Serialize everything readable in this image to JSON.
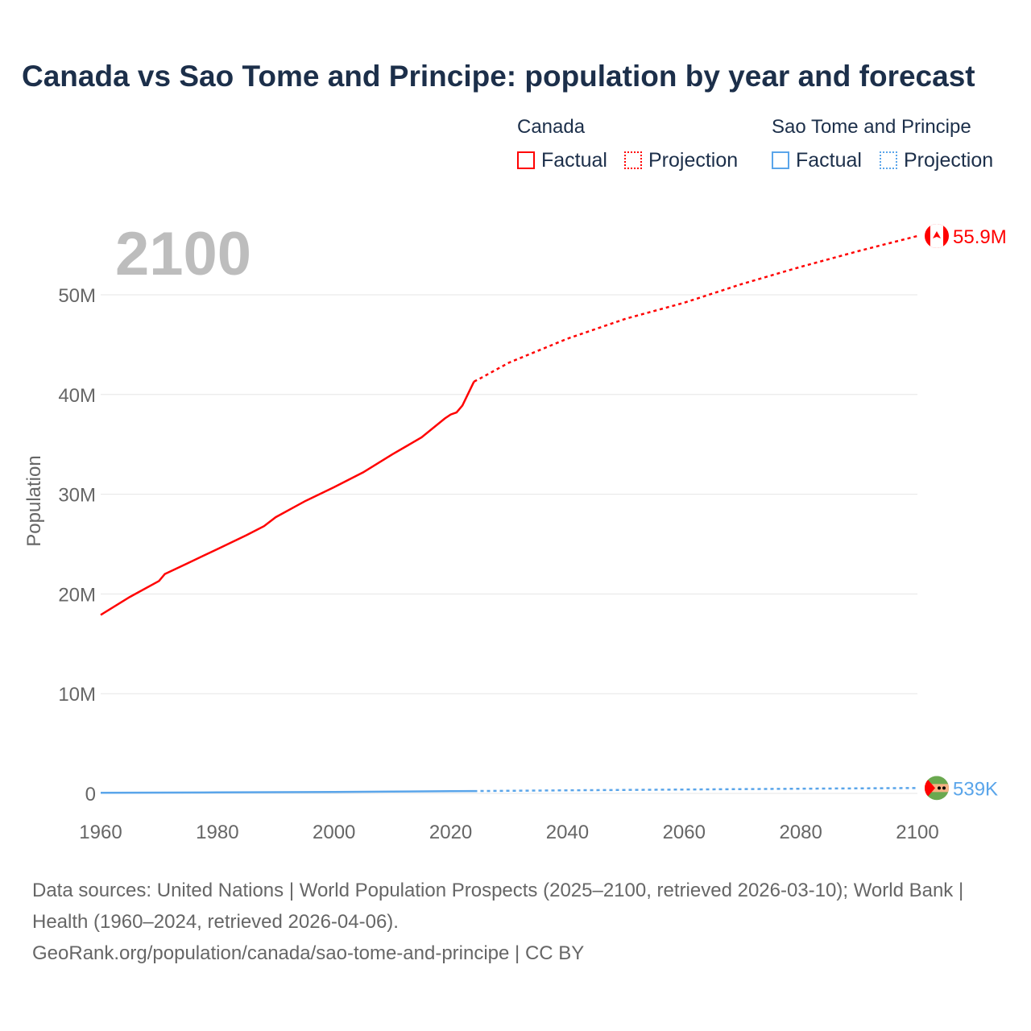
{
  "title": "Canada vs Sao Tome and Principe: population by year and forecast",
  "legend": {
    "groups": [
      {
        "name": "Canada",
        "factual": "Factual",
        "projection": "Projection",
        "color": "#ff0000"
      },
      {
        "name": "Sao Tome and Principe",
        "factual": "Factual",
        "projection": "Projection",
        "color": "#5aa5ea"
      }
    ]
  },
  "current_year": "2100",
  "sources": {
    "line1": "Data sources: United Nations | World Population Prospects (2025–2100, retrieved 2026-03-10); World Bank | Health (1960–2024, retrieved 2026-04-06).",
    "line2": "GeoRank.org/population/canada/sao-tome-and-principe | CC BY"
  },
  "chart_data": {
    "type": "line",
    "title": "Canada vs Sao Tome and Principe: population by year and forecast",
    "xlabel": "",
    "ylabel": "Population",
    "xlim": [
      1960,
      2100
    ],
    "ylim": [
      0,
      55000000
    ],
    "xticks": [
      {
        "v": 1960,
        "label": "1960"
      },
      {
        "v": 1980,
        "label": "1980"
      },
      {
        "v": 2000,
        "label": "2000"
      },
      {
        "v": 2020,
        "label": "2020"
      },
      {
        "v": 2040,
        "label": "2040"
      },
      {
        "v": 2060,
        "label": "2060"
      },
      {
        "v": 2080,
        "label": "2080"
      },
      {
        "v": 2100,
        "label": "2100"
      }
    ],
    "yticks": [
      {
        "v": 0,
        "label": "0"
      },
      {
        "v": 10000000,
        "label": "10M"
      },
      {
        "v": 20000000,
        "label": "20M"
      },
      {
        "v": 30000000,
        "label": "30M"
      },
      {
        "v": 40000000,
        "label": "40M"
      },
      {
        "v": 50000000,
        "label": "50M"
      }
    ],
    "series": [
      {
        "name": "Canada",
        "kind": "factual",
        "color": "#ff0000",
        "x": [
          1960,
          1965,
          1970,
          1971,
          1975,
          1980,
          1985,
          1988,
          1990,
          1995,
          2000,
          2005,
          2010,
          2015,
          2019,
          2020,
          2021,
          2022,
          2023,
          2024
        ],
        "y": [
          17900000,
          19700000,
          21300000,
          22000000,
          23100000,
          24500000,
          25900000,
          26800000,
          27700000,
          29300000,
          30700000,
          32200000,
          34000000,
          35700000,
          37600000,
          38000000,
          38200000,
          38900000,
          40100000,
          41300000
        ]
      },
      {
        "name": "Canada",
        "kind": "projection",
        "color": "#ff0000",
        "x": [
          2024,
          2025,
          2030,
          2040,
          2050,
          2060,
          2070,
          2080,
          2090,
          2100
        ],
        "y": [
          41300000,
          41600000,
          43200000,
          45600000,
          47600000,
          49200000,
          51100000,
          52800000,
          54400000,
          55900000
        ]
      },
      {
        "name": "Sao Tome and Principe",
        "kind": "factual",
        "color": "#5aa5ea",
        "x": [
          1960,
          1980,
          2000,
          2010,
          2020,
          2024
        ],
        "y": [
          64000,
          95000,
          142000,
          180000,
          219000,
          235000
        ]
      },
      {
        "name": "Sao Tome and Principe",
        "kind": "projection",
        "color": "#5aa5ea",
        "x": [
          2024,
          2040,
          2060,
          2080,
          2100
        ],
        "y": [
          235000,
          310000,
          390000,
          470000,
          539000
        ]
      }
    ],
    "end_labels": [
      {
        "series": "Canada",
        "label": "55.9M",
        "color": "#ff0000"
      },
      {
        "series": "Sao Tome and Principe",
        "label": "539K",
        "color": "#5aa5ea"
      }
    ]
  }
}
